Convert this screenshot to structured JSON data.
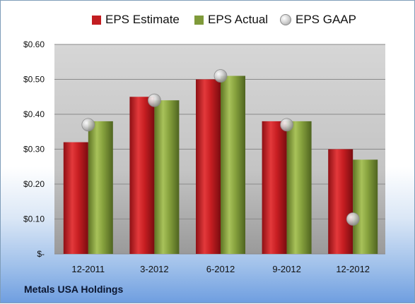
{
  "company": "Metals USA Holdings",
  "colors": {
    "estimate": "#c21d21",
    "actual": "#7f9a3a",
    "gaap": "#b4b4b4"
  },
  "chart_data": {
    "type": "bar",
    "categories": [
      "12-2011",
      "3-2012",
      "6-2012",
      "9-2012",
      "12-2012"
    ],
    "series": [
      {
        "name": "EPS Estimate",
        "values": [
          0.32,
          0.45,
          0.5,
          0.38,
          0.3
        ]
      },
      {
        "name": "EPS Actual",
        "values": [
          0.38,
          0.44,
          0.51,
          0.38,
          0.27
        ]
      },
      {
        "name": "EPS GAAP",
        "values": [
          0.37,
          0.44,
          0.51,
          0.37,
          0.1
        ]
      }
    ],
    "ylim": [
      0,
      0.6
    ],
    "yticks": [
      "$-",
      "$0.10",
      "$0.20",
      "$0.30",
      "$0.40",
      "$0.50",
      "$0.60"
    ],
    "ytick_values": [
      0,
      0.1,
      0.2,
      0.3,
      0.4,
      0.5,
      0.6
    ],
    "legend_position": "top",
    "grid": true
  }
}
